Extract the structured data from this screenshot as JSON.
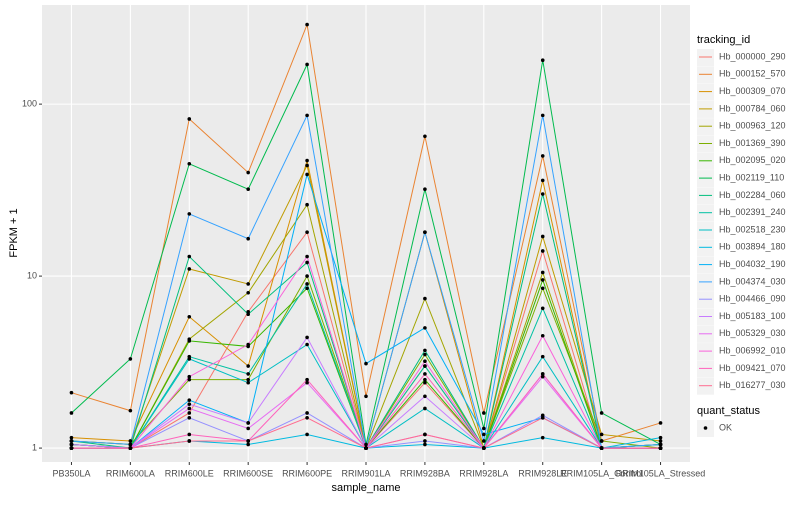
{
  "chart_data": {
    "type": "line",
    "x_label": "sample_name",
    "y_label": "FPKM + 1",
    "categories": [
      "PB350LA",
      "RRIM600LA",
      "RRIM600LE",
      "RRIM600SE",
      "RRIM600PE",
      "RRIM901LA",
      "RRIM928BA",
      "RRIM928LA",
      "RRIM928LE",
      "RRIM105LA_Control",
      "RRIM105LA_Stressed"
    ],
    "log_y": true,
    "ylim": [
      0.83,
      377
    ],
    "yticks": [
      1,
      10,
      100
    ],
    "grid": true,
    "legend_title": "tracking_id",
    "legend_position": "right",
    "point_color": "#000000",
    "status_legend": {
      "title": "quant_status",
      "labels": [
        "OK"
      ]
    },
    "series": [
      {
        "name": "Hb_000000_290",
        "color": "#F8766D",
        "values": [
          1.05,
          1.0,
          1.6,
          6.2,
          18,
          1.0,
          2.4,
          1.0,
          14,
          1.0,
          1.0
        ]
      },
      {
        "name": "Hb_000152_570",
        "color": "#EA8331",
        "values": [
          2.1,
          1.65,
          82,
          40,
          290,
          2.0,
          65,
          1.6,
          50,
          1.1,
          1.4
        ]
      },
      {
        "name": "Hb_000309_070",
        "color": "#D89000",
        "values": [
          1.15,
          1.1,
          5.8,
          3.0,
          47,
          1.0,
          18,
          1.0,
          36,
          1.0,
          1.05
        ]
      },
      {
        "name": "Hb_000784_060",
        "color": "#C09B00",
        "values": [
          1.1,
          1.05,
          11,
          9,
          44,
          1.0,
          3.0,
          1.0,
          17,
          1.2,
          1.1
        ]
      },
      {
        "name": "Hb_000963_120",
        "color": "#A3A500",
        "values": [
          1.05,
          1.0,
          4.3,
          8,
          26,
          1.0,
          7.4,
          1.0,
          10.5,
          1.0,
          1.0
        ]
      },
      {
        "name": "Hb_001369_390",
        "color": "#7CAE00",
        "values": [
          1.1,
          1.05,
          2.5,
          2.5,
          10,
          1.0,
          3.5,
          1.0,
          8.5,
          1.1,
          1.0
        ]
      },
      {
        "name": "Hb_002095_020",
        "color": "#39B600",
        "values": [
          1.05,
          1.0,
          4.2,
          3.9,
          8.5,
          1.0,
          2.5,
          1.0,
          9.5,
          1.0,
          1.05
        ]
      },
      {
        "name": "Hb_002119_110",
        "color": "#00BB4E",
        "values": [
          1.6,
          3.3,
          45,
          32,
          170,
          1.05,
          32,
          1.3,
          180,
          1.6,
          1.05
        ]
      },
      {
        "name": "Hb_002284_060",
        "color": "#00BF7D",
        "values": [
          1.1,
          1.0,
          13,
          6.0,
          12,
          1.0,
          3.7,
          1.0,
          30,
          1.0,
          1.05
        ]
      },
      {
        "name": "Hb_002391_240",
        "color": "#00C1A3",
        "values": [
          1.05,
          1.0,
          3.4,
          2.7,
          9,
          1.0,
          3.0,
          1.0,
          6.5,
          1.0,
          1.0
        ]
      },
      {
        "name": "Hb_002518_230",
        "color": "#00BFC4",
        "values": [
          1.0,
          1.0,
          3.3,
          2.4,
          4,
          1.0,
          1.7,
          1.0,
          3.4,
          1.0,
          1.0
        ]
      },
      {
        "name": "Hb_003894_180",
        "color": "#00BAE0",
        "values": [
          1.0,
          1.0,
          1.1,
          1.05,
          1.2,
          1.0,
          1.05,
          1.0,
          1.15,
          1.0,
          1.15
        ]
      },
      {
        "name": "Hb_004032_190",
        "color": "#00B0F6",
        "values": [
          1.0,
          1.0,
          1.9,
          1.4,
          39,
          3.1,
          5.0,
          1.2,
          1.5,
          1.0,
          1.0
        ]
      },
      {
        "name": "Hb_004374_030",
        "color": "#35A2FF",
        "values": [
          1.1,
          1.05,
          23,
          16.5,
          86,
          1.0,
          18,
          1.1,
          86,
          1.0,
          1.05
        ]
      },
      {
        "name": "Hb_004466_090",
        "color": "#9590FF",
        "values": [
          1.0,
          1.0,
          1.5,
          1.1,
          1.6,
          1.0,
          1.1,
          1.0,
          1.55,
          1.0,
          1.0
        ]
      },
      {
        "name": "Hb_005183_100",
        "color": "#C77CFF",
        "values": [
          1.05,
          1.0,
          1.8,
          1.4,
          4.4,
          1.0,
          2.0,
          1.0,
          2.7,
          1.0,
          1.0
        ]
      },
      {
        "name": "Hb_005329_030",
        "color": "#E76BF3",
        "values": [
          1.0,
          1.0,
          1.7,
          1.3,
          2.4,
          1.0,
          1.2,
          1.0,
          2.6,
          1.0,
          1.0
        ]
      },
      {
        "name": "Hb_006992_010",
        "color": "#FA62DB",
        "values": [
          1.0,
          1.0,
          2.6,
          4.0,
          13,
          1.0,
          3.2,
          1.0,
          4.5,
          1.0,
          1.0
        ]
      },
      {
        "name": "Hb_009421_070",
        "color": "#FF62BC",
        "values": [
          1.0,
          1.0,
          1.2,
          1.1,
          2.5,
          1.0,
          2.7,
          1.0,
          2.7,
          1.0,
          1.0
        ]
      },
      {
        "name": "Hb_016277_030",
        "color": "#FF6C91",
        "values": [
          1.0,
          1.0,
          1.1,
          1.1,
          1.5,
          1.0,
          1.2,
          1.0,
          1.5,
          1.0,
          1.0
        ]
      }
    ]
  }
}
